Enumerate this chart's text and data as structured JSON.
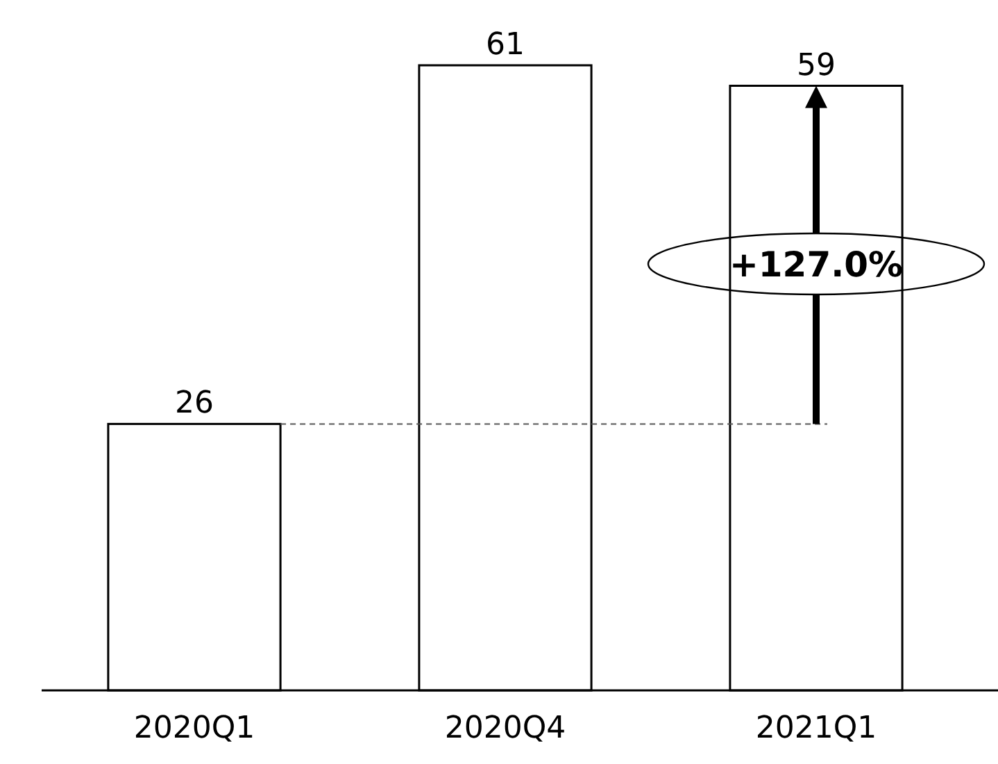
{
  "chart_data": {
    "type": "bar",
    "categories": [
      "2020Q1",
      "2020Q4",
      "2021Q1"
    ],
    "values": [
      26,
      61,
      59
    ],
    "color": "#ffffff",
    "data_labels": true,
    "ref_lines": [
      {
        "axis": "y",
        "value": 26,
        "line_style": "dashed",
        "color": "#555555"
      }
    ],
    "annotations": [
      "+127.0%"
    ]
  }
}
